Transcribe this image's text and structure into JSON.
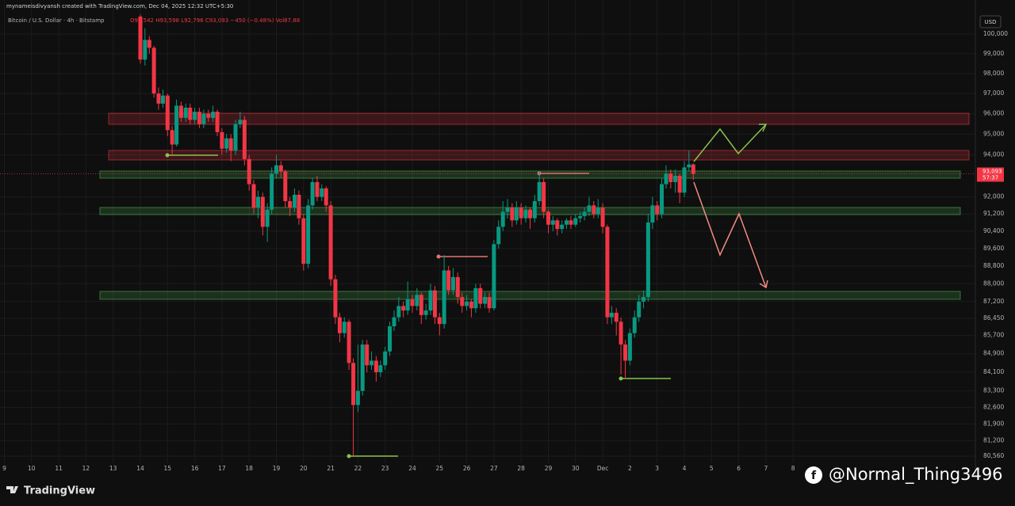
{
  "chart_data": {
    "type": "candlestick",
    "header": "mynameisdivyansh created with TradingView.com, Dec 04, 2025 12:32 UTC+5:30",
    "title": "Bitcoin / U.S. Dollar · 4h · Bitstamp",
    "ohlc_legend": "O93,542 H93,598 L92,796 C93,093 −450 (−0.48%) Vol87.88",
    "currency": "USD",
    "brand": "TradingView",
    "watermark": "@Normal_Thing3496",
    "up_color": "#089981",
    "down_color": "#f23645",
    "grid": true,
    "log_scale": true,
    "xlim": [
      8.84,
      44.7
    ],
    "ylim": [
      80270,
      101060
    ],
    "xticks": [
      9,
      10,
      11,
      12,
      13,
      14,
      15,
      16,
      17,
      18,
      19,
      20,
      21,
      22,
      23,
      24,
      25,
      26,
      27,
      28,
      29,
      30,
      {
        "value": 31,
        "label": "Dec"
      },
      {
        "value": 32,
        "label": "2"
      },
      {
        "value": 33,
        "label": "3"
      },
      {
        "value": 34,
        "label": "4"
      },
      {
        "value": 35,
        "label": "5"
      },
      {
        "value": 36,
        "label": "6"
      },
      {
        "value": 37,
        "label": "7"
      },
      {
        "value": 38,
        "label": "8"
      }
    ],
    "yticks": [
      {
        "value": 100000,
        "label": "100,000"
      },
      {
        "value": 99000,
        "label": "99,000"
      },
      {
        "value": 98000,
        "label": "98,000"
      },
      {
        "value": 97000,
        "label": "97,000"
      },
      {
        "value": 96000,
        "label": "96,000"
      },
      {
        "value": 95000,
        "label": "95,000"
      },
      {
        "value": 94000,
        "label": "94,000"
      },
      {
        "value": 92000,
        "label": "92,000"
      },
      {
        "value": 91200,
        "label": "91,200"
      },
      {
        "value": 90400,
        "label": "90,400"
      },
      {
        "value": 89600,
        "label": "89,600"
      },
      {
        "value": 88800,
        "label": "88,800"
      },
      {
        "value": 88000,
        "label": "88,000"
      },
      {
        "value": 87200,
        "label": "87,200"
      },
      {
        "value": 86450,
        "label": "86,450"
      },
      {
        "value": 85700,
        "label": "85,700"
      },
      {
        "value": 84900,
        "label": "84,900"
      },
      {
        "value": 84100,
        "label": "84,100"
      },
      {
        "value": 83300,
        "label": "83,300"
      },
      {
        "value": 82600,
        "label": "82,600"
      },
      {
        "value": 81900,
        "label": "81,900"
      },
      {
        "value": 81200,
        "label": "81,200"
      },
      {
        "value": 80560,
        "label": "80,560"
      }
    ],
    "last_price": {
      "value": 93093,
      "label": "93,093"
    },
    "countdown": "57:37",
    "x": [
      14,
      14.17,
      14.33,
      14.5,
      14.67,
      14.83,
      15,
      15.17,
      15.33,
      15.5,
      15.67,
      15.83,
      16,
      16.17,
      16.33,
      16.5,
      16.67,
      16.83,
      17,
      17.17,
      17.33,
      17.5,
      17.67,
      17.83,
      18,
      18.17,
      18.33,
      18.5,
      18.67,
      18.83,
      19,
      19.17,
      19.33,
      19.5,
      19.67,
      19.83,
      20,
      20.17,
      20.33,
      20.5,
      20.67,
      20.83,
      21,
      21.17,
      21.33,
      21.5,
      21.67,
      21.83,
      22,
      22.17,
      22.33,
      22.5,
      22.67,
      22.83,
      23,
      23.17,
      23.33,
      23.5,
      23.67,
      23.83,
      24,
      24.17,
      24.33,
      24.5,
      24.67,
      24.83,
      25,
      25.17,
      25.33,
      25.5,
      25.67,
      25.83,
      26,
      26.17,
      26.33,
      26.5,
      26.67,
      26.83,
      27,
      27.17,
      27.33,
      27.5,
      27.67,
      27.83,
      28,
      28.17,
      28.33,
      28.5,
      28.67,
      28.83,
      29,
      29.17,
      29.33,
      29.5,
      29.67,
      29.83,
      30,
      30.17,
      30.33,
      30.5,
      30.67,
      30.83,
      31,
      31.17,
      31.33,
      31.5,
      31.67,
      31.83,
      32,
      32.17,
      32.33,
      32.5,
      32.67,
      32.83,
      33,
      33.17,
      33.33,
      33.5,
      33.67,
      33.83,
      34,
      34.17,
      34.33
    ],
    "open": [
      100900,
      98700,
      99700,
      99300,
      97000,
      96500,
      96900,
      95200,
      94500,
      96400,
      95800,
      96300,
      95700,
      96100,
      95500,
      96000,
      95800,
      96100,
      95100,
      94300,
      94800,
      94200,
      95500,
      95700,
      93800,
      92600,
      91500,
      92000,
      90600,
      91400,
      93100,
      93500,
      93200,
      91800,
      91500,
      92100,
      91000,
      88900,
      91600,
      92700,
      92000,
      92400,
      91600,
      88200,
      86500,
      85800,
      86300,
      84500,
      82700,
      83300,
      85300,
      84400,
      84600,
      84100,
      84400,
      85000,
      86100,
      86500,
      87000,
      86800,
      87300,
      87000,
      87500,
      86600,
      86800,
      87700,
      86500,
      86200,
      88600,
      87700,
      88300,
      87400,
      87000,
      87200,
      86900,
      87800,
      87100,
      87400,
      86900,
      89800,
      90600,
      91300,
      91500,
      90900,
      91500,
      91000,
      91400,
      91000,
      91800,
      92700,
      91300,
      90700,
      90900,
      90500,
      90700,
      90900,
      90700,
      91000,
      91100,
      91300,
      91600,
      91200,
      91500,
      90600,
      86500,
      86700,
      86300,
      85300,
      84600,
      85800,
      86500,
      87200,
      87400,
      90800,
      91600,
      91200,
      92600,
      93100,
      92700,
      93000,
      92200,
      93400,
      93542
    ],
    "high": [
      101000,
      100300,
      99900,
      99400,
      97300,
      97200,
      97000,
      95400,
      96700,
      96600,
      96500,
      96500,
      96300,
      96300,
      96200,
      96200,
      96400,
      96200,
      95300,
      95000,
      95000,
      95700,
      96100,
      95900,
      94000,
      92800,
      92300,
      92200,
      91700,
      93400,
      94000,
      93700,
      93300,
      92000,
      92400,
      92300,
      91200,
      91900,
      92900,
      93000,
      92600,
      92500,
      91800,
      88400,
      86700,
      86500,
      86400,
      84700,
      85300,
      85500,
      85500,
      85000,
      84800,
      84600,
      85200,
      86300,
      86800,
      87400,
      87200,
      88100,
      87500,
      87800,
      87600,
      87100,
      88000,
      87900,
      86700,
      89300,
      88800,
      88700,
      88500,
      87600,
      87500,
      87300,
      88000,
      88000,
      87600,
      87600,
      90000,
      90900,
      91800,
      91900,
      91700,
      91800,
      91700,
      91600,
      91500,
      92100,
      93200,
      92900,
      91400,
      91100,
      91000,
      90900,
      91000,
      91100,
      91200,
      91300,
      91500,
      92000,
      91800,
      91900,
      91700,
      90700,
      87000,
      86900,
      86500,
      85500,
      86000,
      86800,
      87500,
      87700,
      91200,
      92000,
      91800,
      92900,
      93500,
      93300,
      93300,
      93100,
      93700,
      94200,
      93598
    ],
    "low": [
      98500,
      98400,
      99000,
      96800,
      96200,
      96300,
      94900,
      94000,
      94400,
      95600,
      95600,
      95500,
      95500,
      95300,
      95300,
      95600,
      95600,
      94900,
      94000,
      94100,
      93700,
      94000,
      95300,
      93500,
      92300,
      91200,
      91000,
      90200,
      89900,
      91200,
      92900,
      92900,
      91500,
      91100,
      91300,
      90700,
      88600,
      88700,
      91400,
      91800,
      91800,
      91300,
      87900,
      86200,
      85400,
      85600,
      84200,
      80560,
      82400,
      83100,
      84100,
      84200,
      83700,
      83900,
      84200,
      84800,
      85900,
      86300,
      86500,
      86600,
      86700,
      86800,
      86200,
      86400,
      86600,
      86200,
      85700,
      86000,
      87500,
      87500,
      87100,
      86700,
      86800,
      86500,
      86700,
      86900,
      86900,
      86700,
      86800,
      89600,
      90400,
      91000,
      90600,
      90700,
      90700,
      90800,
      90500,
      90800,
      91600,
      91000,
      90300,
      90400,
      90200,
      90300,
      90500,
      90500,
      90600,
      90800,
      90900,
      91100,
      91000,
      91000,
      90300,
      86200,
      86200,
      85700,
      84000,
      83800,
      84400,
      85600,
      86300,
      86900,
      87200,
      90500,
      90900,
      91000,
      92400,
      92400,
      92200,
      91700,
      92000,
      93200,
      92796
    ],
    "close": [
      98700,
      99700,
      99300,
      97000,
      96500,
      96900,
      95200,
      94500,
      96400,
      95800,
      96300,
      95700,
      96100,
      95500,
      96000,
      95800,
      96100,
      95100,
      94300,
      94800,
      94200,
      95500,
      95700,
      93800,
      92600,
      91500,
      92000,
      90600,
      91400,
      93100,
      93500,
      93200,
      91800,
      91500,
      92100,
      91000,
      88900,
      91600,
      92700,
      92000,
      92400,
      91600,
      88200,
      86500,
      85800,
      86300,
      84500,
      82700,
      83300,
      85300,
      84400,
      84600,
      84100,
      84400,
      85000,
      86100,
      86500,
      87000,
      86800,
      87300,
      87000,
      87500,
      86600,
      86800,
      87700,
      86500,
      86200,
      88600,
      87700,
      88300,
      87400,
      87000,
      87200,
      86900,
      87800,
      87100,
      87400,
      86900,
      89800,
      90600,
      91300,
      91500,
      90900,
      91500,
      91000,
      91400,
      91000,
      91800,
      92700,
      91300,
      90700,
      90900,
      90500,
      90700,
      90900,
      90700,
      91000,
      91100,
      91300,
      91600,
      91200,
      91500,
      90600,
      86500,
      86700,
      86300,
      85300,
      84600,
      85800,
      86500,
      87200,
      87400,
      90800,
      91600,
      91200,
      92600,
      93100,
      92700,
      93000,
      92200,
      93400,
      93542,
      93093
    ]
  }
}
